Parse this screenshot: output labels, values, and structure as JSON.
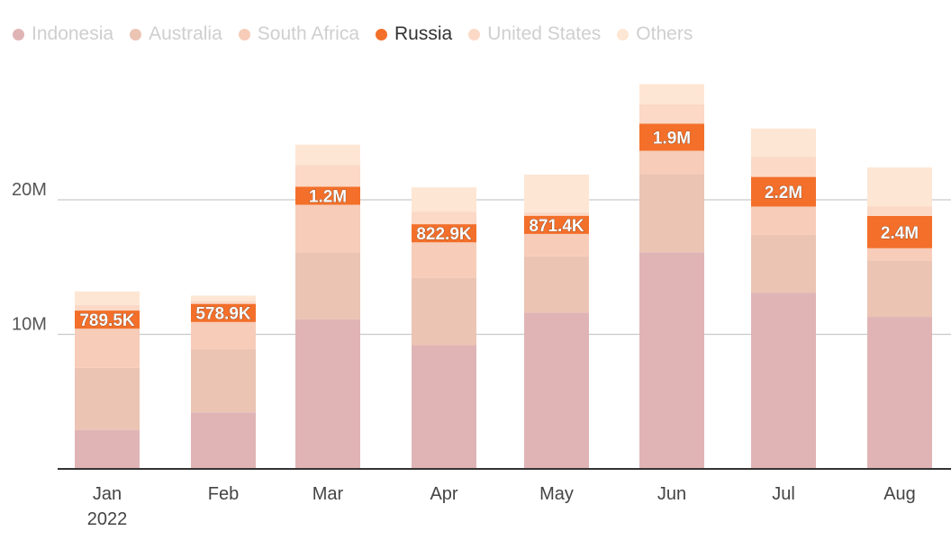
{
  "chart_data": {
    "type": "bar",
    "stacked": true,
    "categories": [
      "Jan",
      "Feb",
      "Mar",
      "Apr",
      "May",
      "Jun",
      "Jul",
      "Aug"
    ],
    "x_sublabels": [
      "2022",
      "",
      "",
      "",
      "",
      "",
      "",
      ""
    ],
    "series": [
      {
        "name": "Indonesia",
        "color": "#e0b4b5",
        "values": [
          2.9,
          4.2,
          11.1,
          9.2,
          11.6,
          16.1,
          13.1,
          11.3
        ]
      },
      {
        "name": "Australia",
        "color": "#ebc4b4",
        "values": [
          4.6,
          4.7,
          5.0,
          5.0,
          4.2,
          5.8,
          4.3,
          4.2
        ]
      },
      {
        "name": "South Africa",
        "color": "#f7ccb8",
        "values": [
          3.2,
          2.4,
          3.6,
          2.9,
          1.9,
          1.8,
          2.1,
          0.9
        ]
      },
      {
        "name": "Russia",
        "color": "#f36f2a",
        "values": [
          0.7895,
          0.5789,
          1.2,
          0.8229,
          0.8714,
          1.9,
          2.2,
          2.4
        ],
        "labels": [
          "789.5K",
          "578.9K",
          "1.2M",
          "822.9K",
          "871.4K",
          "1.9M",
          "2.2M",
          "2.4M"
        ]
      },
      {
        "name": "United States",
        "color": "#fbd9c6",
        "values": [
          0.7,
          0.6,
          1.7,
          1.2,
          0.5,
          1.5,
          1.5,
          0.7
        ]
      },
      {
        "name": "Others",
        "color": "#fde6d4",
        "values": [
          1.0,
          0.4,
          1.5,
          1.8,
          2.8,
          1.5,
          2.1,
          2.9
        ]
      }
    ],
    "highlight_series": "Russia",
    "yticks": [
      {
        "value": 10,
        "label": "10M"
      },
      {
        "value": 20,
        "label": "20M"
      }
    ],
    "ylim": [
      0,
      29
    ],
    "grid": true,
    "legend_position": "top-left",
    "title": "",
    "xlabel": "",
    "ylabel": ""
  }
}
